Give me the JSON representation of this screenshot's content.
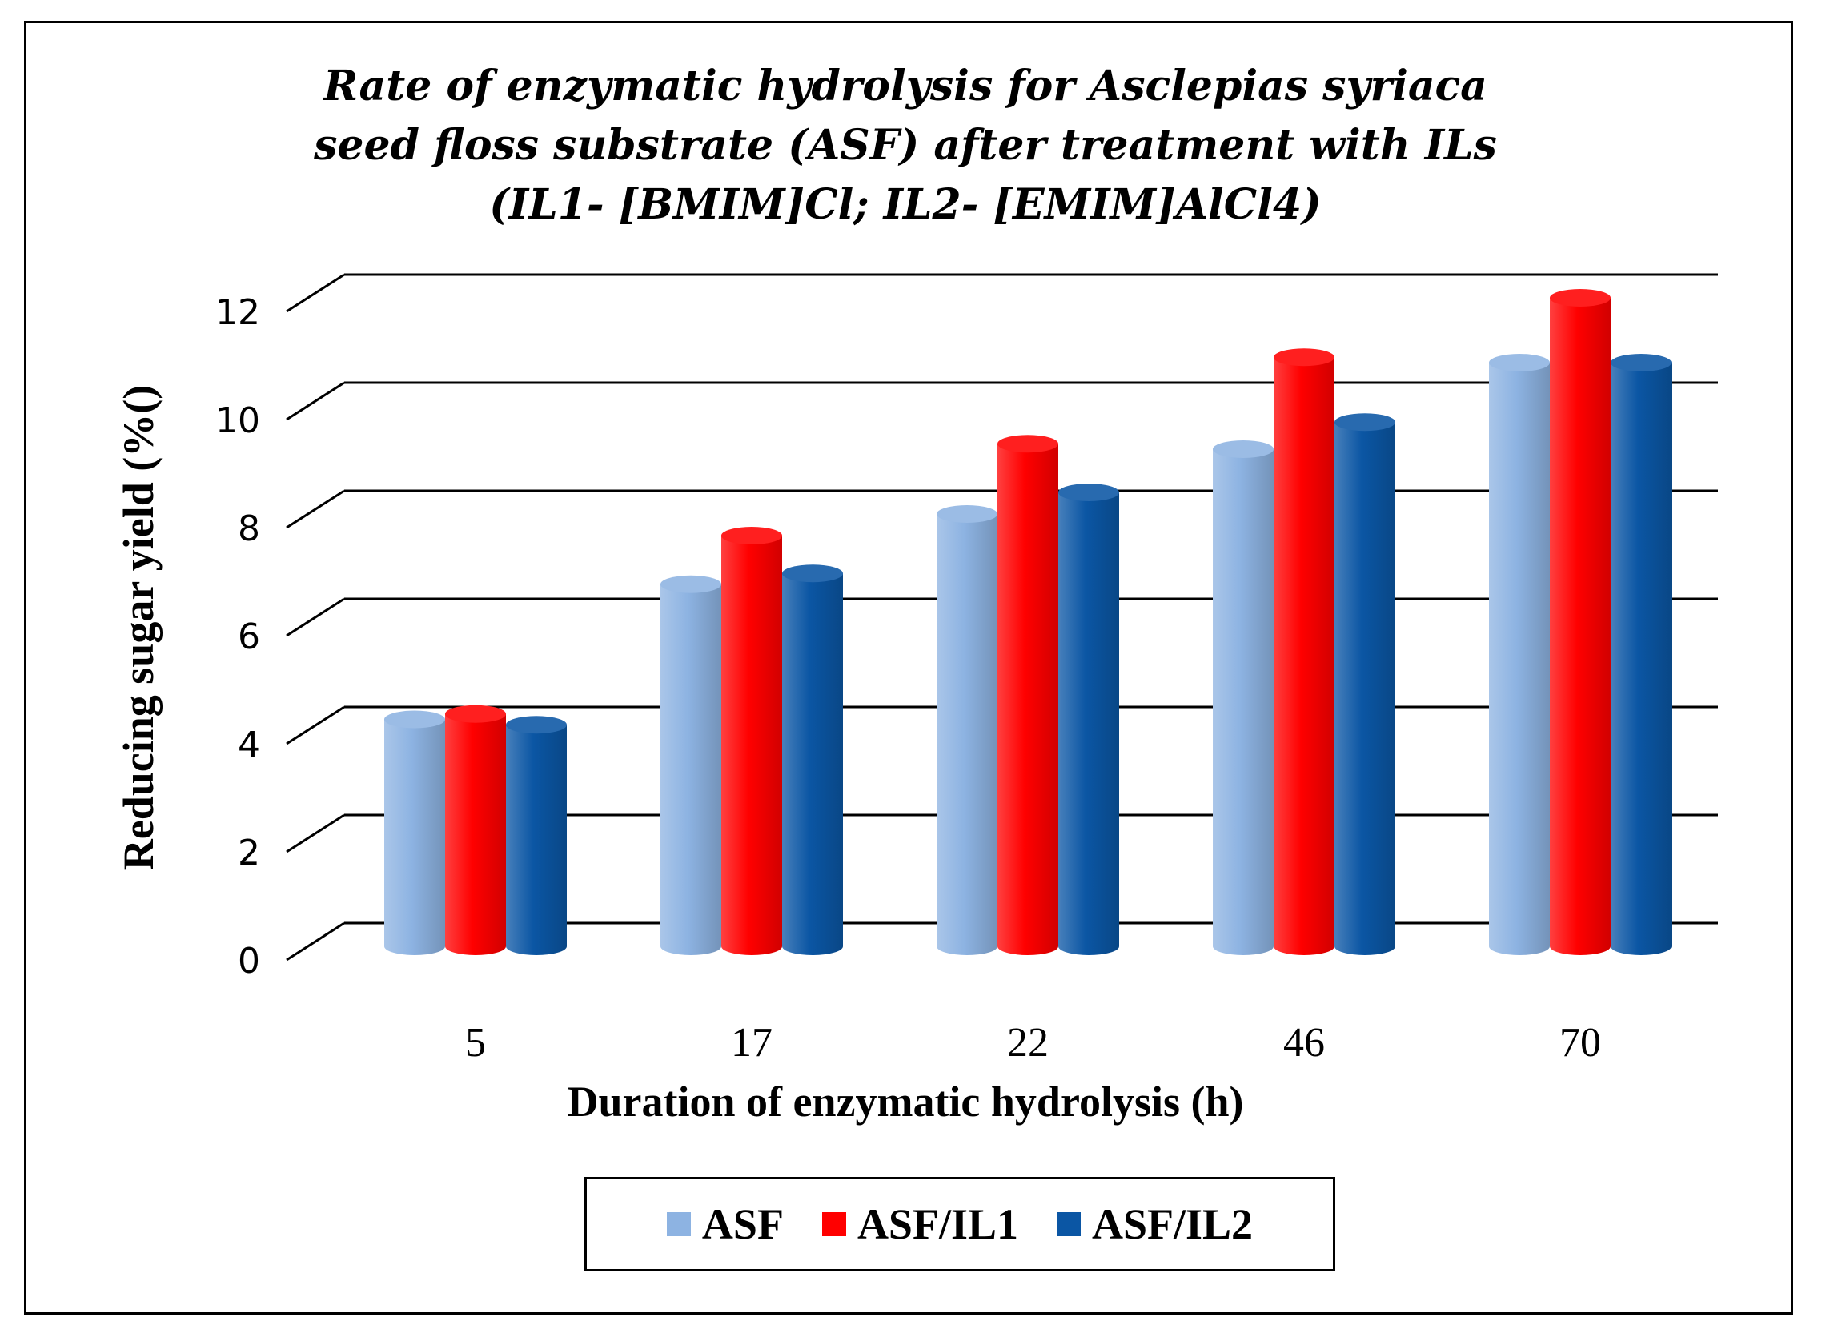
{
  "chart_data": {
    "type": "bar",
    "title_lines": [
      "Rate of enzymatic hydrolysis for Asclepias syriaca",
      "seed floss substrate (ASF) after treatment with ILs",
      "(IL1- [BMIM]Cl; IL2- [EMIM]AlCl4)"
    ],
    "xlabel": "Duration of enzymatic hydrolysis (h)",
    "ylabel": "Reducing sugar yield (%()",
    "categories": [
      "5",
      "17",
      "22",
      "46",
      "70"
    ],
    "yticks": [
      "0",
      "2",
      "4",
      "6",
      "8",
      "10",
      "12"
    ],
    "ylim": [
      0,
      12
    ],
    "grid": true,
    "legend_position": "bottom",
    "series": [
      {
        "name": "ASF",
        "color": "#8db3e2",
        "values": [
          4.2,
          6.7,
          8.0,
          9.2,
          10.8
        ]
      },
      {
        "name": "ASF/IL1",
        "color": "#ff0000",
        "values": [
          4.3,
          7.6,
          9.3,
          10.9,
          12.0
        ]
      },
      {
        "name": "ASF/IL2",
        "color": "#0b56a4",
        "values": [
          4.1,
          6.9,
          8.4,
          9.7,
          10.8
        ]
      }
    ]
  }
}
